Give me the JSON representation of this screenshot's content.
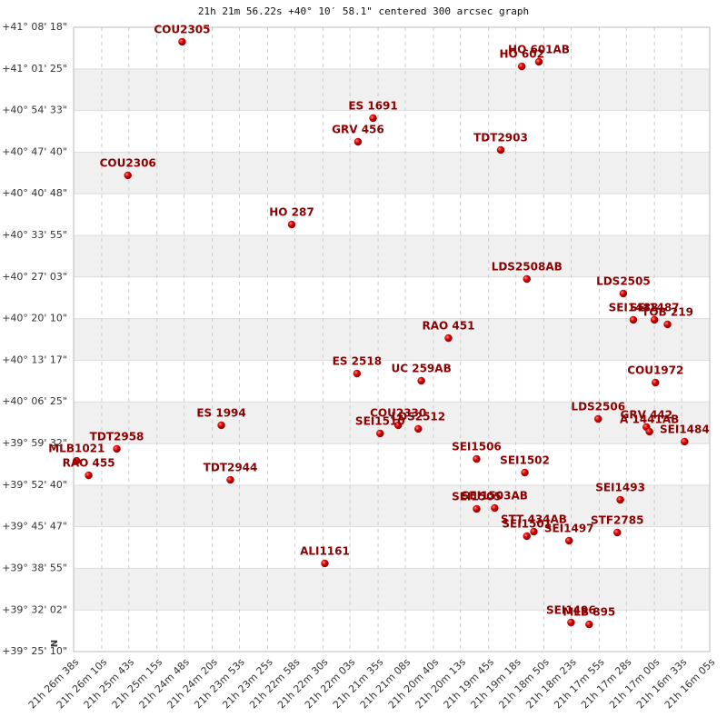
{
  "chart_data": {
    "type": "scatter",
    "title": "21h 21m 56.22s +40° 10′ 58.1\" centered 300 arcsec graph",
    "compass_label": "N",
    "color": "#cc0000",
    "grid": true,
    "xlim": [
      77198,
      76565
    ],
    "ylim": [
      141910,
      148098
    ],
    "xticks": [
      {
        "value": 77198,
        "label": "21h 26m 38s"
      },
      {
        "value": 77170,
        "label": "21h 26m 10s"
      },
      {
        "value": 77143,
        "label": "21h 25m 43s"
      },
      {
        "value": 77115,
        "label": "21h 25m 15s"
      },
      {
        "value": 77088,
        "label": "21h 24m 48s"
      },
      {
        "value": 77060,
        "label": "21h 24m 20s"
      },
      {
        "value": 77033,
        "label": "21h 23m 53s"
      },
      {
        "value": 77005,
        "label": "21h 23m 25s"
      },
      {
        "value": 76978,
        "label": "21h 22m 58s"
      },
      {
        "value": 76950,
        "label": "21h 22m 30s"
      },
      {
        "value": 76923,
        "label": "21h 22m 03s"
      },
      {
        "value": 76895,
        "label": "21h 21m 35s"
      },
      {
        "value": 76868,
        "label": "21h 21m 08s"
      },
      {
        "value": 76840,
        "label": "21h 20m 40s"
      },
      {
        "value": 76813,
        "label": "21h 20m 13s"
      },
      {
        "value": 76785,
        "label": "21h 19m 45s"
      },
      {
        "value": 76758,
        "label": "21h 19m 18s"
      },
      {
        "value": 76730,
        "label": "21h 18m 50s"
      },
      {
        "value": 76703,
        "label": "21h 18m 23s"
      },
      {
        "value": 76675,
        "label": "21h 17m 55s"
      },
      {
        "value": 76648,
        "label": "21h 17m 28s"
      },
      {
        "value": 76620,
        "label": "21h 17m 00s"
      },
      {
        "value": 76593,
        "label": "21h 16m 33s"
      },
      {
        "value": 76565,
        "label": "21h 16m 05s"
      }
    ],
    "yticks": [
      {
        "value": 141910,
        "label": "+39° 25' 10\""
      },
      {
        "value": 142322,
        "label": "+39° 32' 02\""
      },
      {
        "value": 142735,
        "label": "+39° 38' 55\""
      },
      {
        "value": 143147,
        "label": "+39° 45' 47\""
      },
      {
        "value": 143560,
        "label": "+39° 52' 40\""
      },
      {
        "value": 143972,
        "label": "+39° 59' 32\""
      },
      {
        "value": 144385,
        "label": "+40° 06' 25\""
      },
      {
        "value": 144797,
        "label": "+40° 13' 17\""
      },
      {
        "value": 145210,
        "label": "+40° 20' 10\""
      },
      {
        "value": 145623,
        "label": "+40° 27' 03\""
      },
      {
        "value": 146035,
        "label": "+40° 33' 55\""
      },
      {
        "value": 146448,
        "label": "+40° 40' 48\""
      },
      {
        "value": 146860,
        "label": "+40° 47' 40\""
      },
      {
        "value": 147273,
        "label": "+40° 54' 33\""
      },
      {
        "value": 147685,
        "label": "+41° 01' 25\""
      },
      {
        "value": 148098,
        "label": "+41° 08' 18\""
      }
    ],
    "point_labels": [
      "COU2305",
      "HO  601AB",
      "HO  602",
      "ES 1691",
      "GRV 456",
      "TDT2903",
      "COU2306",
      "HO  287",
      "LDS2508AB",
      "LDS2505",
      "SEI1488",
      "SEI1487",
      "TOB 219",
      "RAO 451",
      "ES 2518",
      "UC  259AB",
      "COU1972",
      "LDS2506",
      "GRV 442",
      "A  1441AB",
      "SEI1484",
      "ES 1994",
      "COU2330",
      "LDS2512",
      "SEI1510",
      "TDT2958",
      "MLB1021",
      "RAO 455",
      "TDT2944",
      "SEI1506",
      "SEI1502",
      "SEI1493",
      "SEI1505",
      "SEI1503AB",
      "STT 434AB",
      "SEI1501",
      "SEI1497",
      "STF2785",
      "ALI1161",
      "SEI1496",
      "MLB 895"
    ],
    "x": [
      77090,
      76735,
      76752,
      76900,
      76915,
      76773,
      77144,
      76981,
      76747,
      76651,
      76641,
      76620,
      76607,
      76825,
      76916,
      76852,
      76619,
      76676,
      76628,
      76625,
      76590,
      77051,
      76875,
      76855,
      76893,
      77155,
      77195,
      77183,
      77042,
      76797,
      76749,
      76654,
      76797,
      76779,
      76740,
      76747,
      76705,
      76657,
      76948,
      76703,
      76685
    ],
    "y": [
      147954,
      147756,
      147710,
      147197,
      146963,
      146882,
      146630,
      146143,
      145603,
      145459,
      145198,
      145198,
      145153,
      145017,
      144666,
      144594,
      144576,
      144216,
      144135,
      144090,
      143991,
      144153,
      144153,
      144117,
      144072,
      143919,
      143801,
      143657,
      143612,
      143819,
      143684,
      143414,
      143324,
      143333,
      143099,
      143054,
      143009,
      143090,
      142784,
      142198,
      142180
    ]
  }
}
